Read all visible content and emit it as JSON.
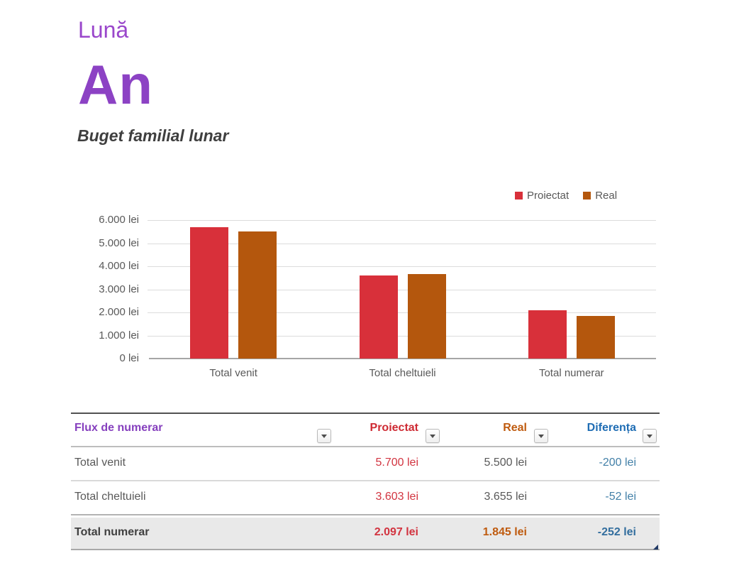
{
  "header": {
    "month_label": "Lună",
    "year_title": "An",
    "subtitle": "Buget familial lunar"
  },
  "colors": {
    "purple_title": "#8c42c4",
    "purple_table_header": "#8640be",
    "projected_red": "#d8303a",
    "real_orange": "#b4570d",
    "difference_blue_header": "#1f6db4",
    "difference_blue_value": "#4380a8",
    "text_gray": "#595959",
    "gridline_gray": "#dcdcdc",
    "axis_gray": "#a6a6a6",
    "total_row_bg": "#e9e9e9"
  },
  "chart_data": {
    "type": "bar",
    "categories": [
      "Total venit",
      "Total cheltuieli",
      "Total numerar"
    ],
    "series": [
      {
        "name": "Proiectat",
        "color": "#d8303a",
        "values": [
          5700,
          3603,
          2097
        ]
      },
      {
        "name": "Real",
        "color": "#b4570d",
        "values": [
          5500,
          3655,
          1845
        ]
      }
    ],
    "ylim": [
      0,
      6000
    ],
    "ytick_step": 1000,
    "ytick_labels": [
      "0 lei",
      "1.000 lei",
      "2.000 lei",
      "3.000 lei",
      "4.000 lei",
      "5.000 lei",
      "6.000 lei"
    ],
    "grid": true,
    "legend_position": "top-right"
  },
  "table": {
    "headers": [
      {
        "label": "Flux de numerar",
        "color": "#8640be"
      },
      {
        "label": "Proiectat",
        "color": "#ce2a33"
      },
      {
        "label": "Real",
        "color": "#bf5b0f"
      },
      {
        "label": "Diferența",
        "color": "#1f6db4"
      }
    ],
    "rows": [
      {
        "label": "Total venit",
        "proiectat": "5.700 lei",
        "real": "5.500 lei",
        "diferenta": "-200 lei",
        "is_total": false
      },
      {
        "label": "Total cheltuieli",
        "proiectat": "3.603 lei",
        "real": "3.655 lei",
        "diferenta": "-52 lei",
        "is_total": false
      },
      {
        "label": "Total numerar",
        "proiectat": "2.097 lei",
        "real": "1.845 lei",
        "diferenta": "-252 lei",
        "is_total": true
      }
    ],
    "value_colors": {
      "proiectat": "#d23440",
      "real_normal": "#595959",
      "real_total": "#bf5b0f",
      "diferenta": "#4380a8",
      "diferenta_total": "#336e9e"
    }
  }
}
